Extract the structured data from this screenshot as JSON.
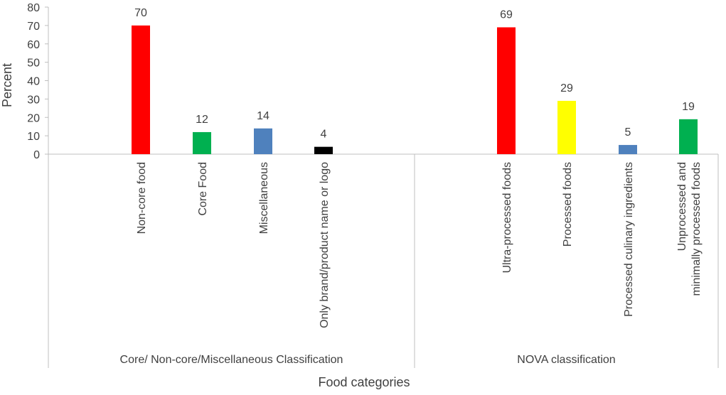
{
  "chart_data": {
    "type": "bar",
    "ylabel": "Percent",
    "xlabel": "Food categories",
    "ylim": [
      0,
      80
    ],
    "yticks": [
      0,
      10,
      20,
      30,
      40,
      50,
      60,
      70,
      80
    ],
    "grid": false,
    "legend": "none",
    "groups": [
      {
        "name": "Core/ Non-core/Miscellaneous Classification",
        "categories": [
          {
            "label": "Non-core food",
            "value": 70,
            "color": "#ff0000"
          },
          {
            "label": "Core Food",
            "value": 12,
            "color": "#00b050"
          },
          {
            "label": "Miscellaneous",
            "value": 14,
            "color": "#4f81bd"
          },
          {
            "label": "Only brand/product name or logo",
            "value": 4,
            "color": "#000000"
          }
        ]
      },
      {
        "name": "NOVA classification",
        "categories": [
          {
            "label": "Ultra-processed foods",
            "value": 69,
            "color": "#ff0000"
          },
          {
            "label": "Processed foods",
            "value": 29,
            "color": "#ffff00"
          },
          {
            "label": "Processed culinary ingredients",
            "value": 5,
            "color": "#4f81bd"
          },
          {
            "label": "Unprocessed and minimally processed foods",
            "value": 19,
            "color": "#00b050"
          }
        ]
      }
    ]
  }
}
